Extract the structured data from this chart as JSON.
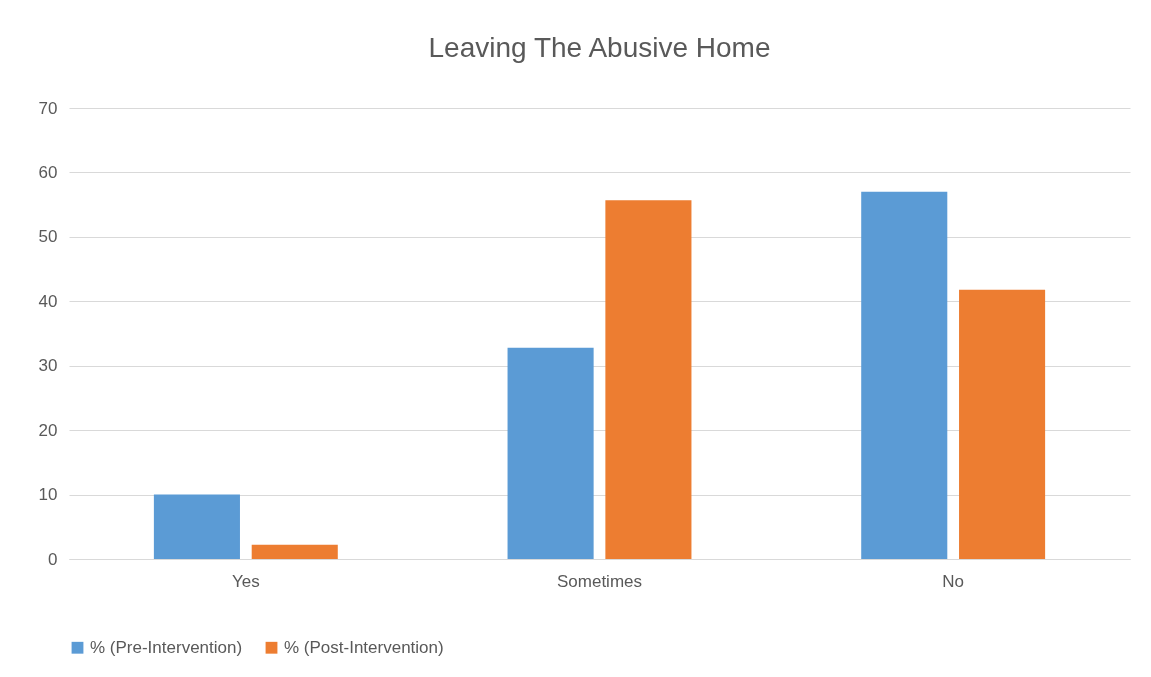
{
  "chart_data": {
    "type": "bar",
    "title": "Leaving The Abusive Home",
    "categories": [
      "Yes",
      "Sometimes",
      "No"
    ],
    "series": [
      {
        "name": "% (Pre-Intervention)",
        "color": "#5b9bd5",
        "values": [
          10,
          32.8,
          57.0
        ]
      },
      {
        "name": "% (Post-Intervention)",
        "color": "#ed7d31",
        "values": [
          2.2,
          55.7,
          41.8
        ]
      }
    ],
    "ylim": [
      0,
      70
    ],
    "yticks": [
      0,
      10,
      20,
      30,
      40,
      50,
      60,
      70
    ],
    "grid": "y",
    "legend": "bottom"
  }
}
